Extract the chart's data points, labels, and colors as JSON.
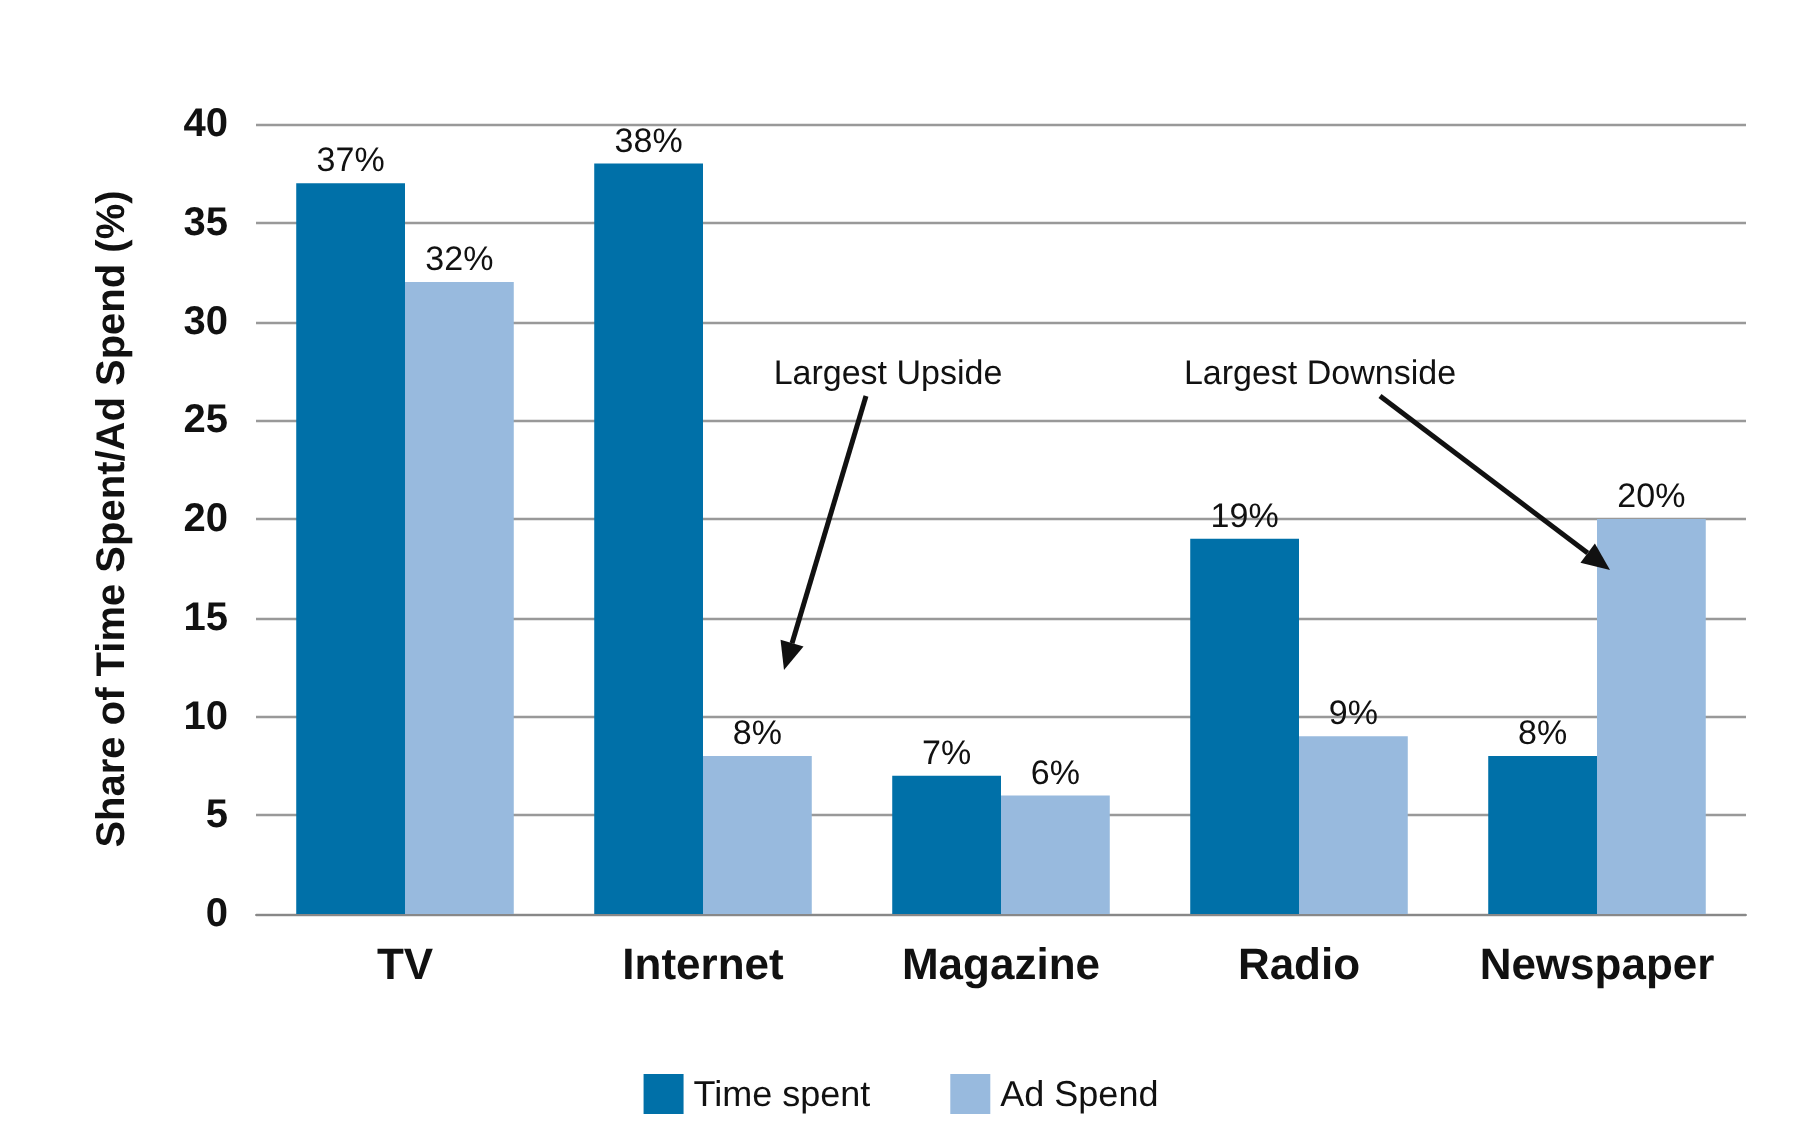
{
  "chart_data": {
    "type": "bar",
    "ylabel": "Share of Time Spent/Ad Spend (%)",
    "categories": [
      "TV",
      "Internet",
      "Magazine",
      "Radio",
      "Newspaper"
    ],
    "series": [
      {
        "name": "Time spent",
        "color": "#0070a8",
        "values": [
          37,
          38,
          7,
          19,
          8
        ],
        "value_labels": [
          "37%",
          "38%",
          "7%",
          "19%",
          "8%"
        ]
      },
      {
        "name": "Ad Spend",
        "color": "#98bade",
        "values": [
          32,
          8,
          6,
          9,
          20
        ],
        "value_labels": [
          "32%",
          "8%",
          "6%",
          "9%",
          "20%"
        ]
      }
    ],
    "ylim": [
      0,
      40
    ],
    "yticks": [
      0,
      5,
      10,
      15,
      20,
      25,
      30,
      35,
      40
    ],
    "grid": "y",
    "legend": "bottom",
    "annotations": [
      "Largest Upside",
      "Largest Downside"
    ]
  }
}
